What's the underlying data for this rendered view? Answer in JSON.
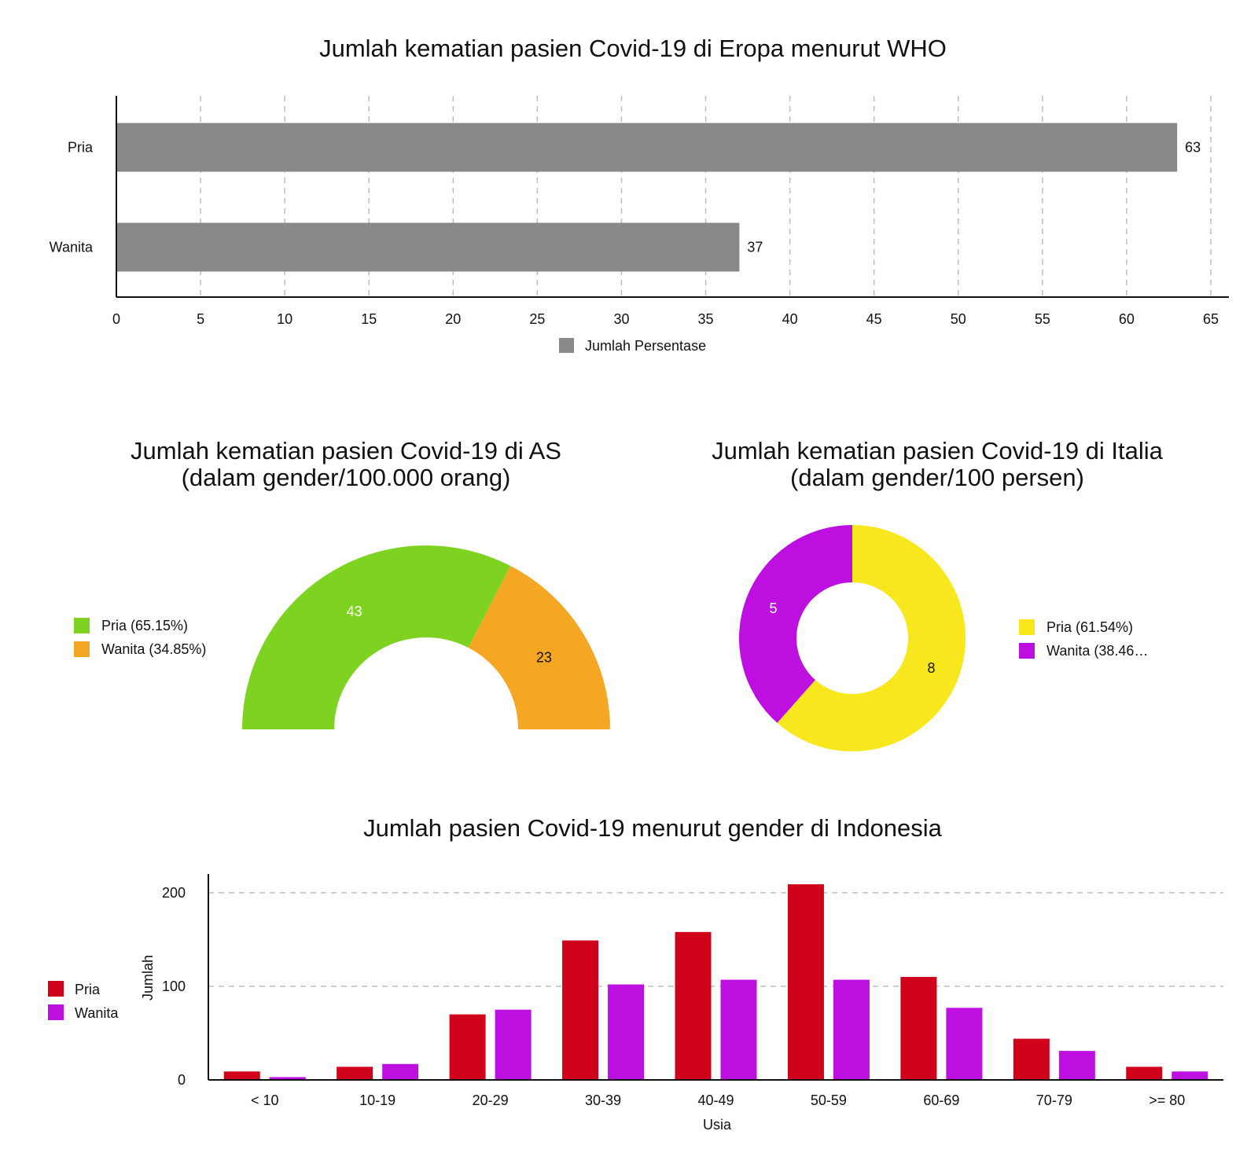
{
  "chart_data": [
    {
      "type": "bar",
      "orientation": "horizontal",
      "title": "Jumlah kematian pasien Covid-19 di Eropa menurut WHO",
      "categories": [
        "Pria",
        "Wanita"
      ],
      "series": [
        {
          "name": "Jumlah Persentase",
          "values": [
            63,
            37
          ],
          "color": "#888888"
        }
      ],
      "data_labels": [
        "63",
        "37"
      ],
      "xlim": [
        0,
        65
      ],
      "x_ticks": [
        "0",
        "5",
        "10",
        "15",
        "20",
        "25",
        "30",
        "35",
        "40",
        "45",
        "50",
        "55",
        "60",
        "65"
      ],
      "grid": true,
      "legend": "bottom"
    },
    {
      "type": "pie",
      "variant": "half-donut",
      "title": "Jumlah kematian pasien Covid-19 di AS",
      "subtitle": "(dalam gender/100.000 orang)",
      "slices": [
        {
          "label": "Pria",
          "value": 43,
          "legend": "Pria (65.15%)",
          "color": "#7ed321"
        },
        {
          "label": "Wanita",
          "value": 23,
          "legend": "Wanita (34.85%)",
          "color": "#f5a623"
        }
      ],
      "legend": "left"
    },
    {
      "type": "pie",
      "variant": "donut",
      "title": "Jumlah kematian pasien Covid-19 di Italia",
      "subtitle": "(dalam gender/100 persen)",
      "slices": [
        {
          "label": "Pria",
          "value": 8,
          "legend": "Pria (61.54%)",
          "color": "#f8e71c"
        },
        {
          "label": "Wanita",
          "value": 5,
          "legend": "Wanita (38.46…",
          "color": "#bd10e0"
        }
      ],
      "legend": "right"
    },
    {
      "type": "bar",
      "title": "Jumlah pasien Covid-19 menurut gender di Indonesia",
      "xlabel": "Usia",
      "ylabel": "Jumlah",
      "categories": [
        "< 10",
        "10-19",
        "20-29",
        "30-39",
        "40-49",
        "50-59",
        "60-69",
        "70-79",
        ">= 80"
      ],
      "series": [
        {
          "name": "Pria",
          "values": [
            9,
            14,
            70,
            149,
            158,
            209,
            110,
            44,
            14
          ],
          "color": "#d0021b"
        },
        {
          "name": "Wanita",
          "values": [
            3,
            17,
            75,
            102,
            107,
            107,
            77,
            31,
            9
          ],
          "color": "#bd10e0"
        }
      ],
      "ylim": [
        0,
        220
      ],
      "y_ticks": [
        0,
        100,
        200
      ],
      "y_tick_labels": [
        "0",
        "100",
        "200"
      ],
      "grid": true,
      "legend": "left"
    }
  ]
}
